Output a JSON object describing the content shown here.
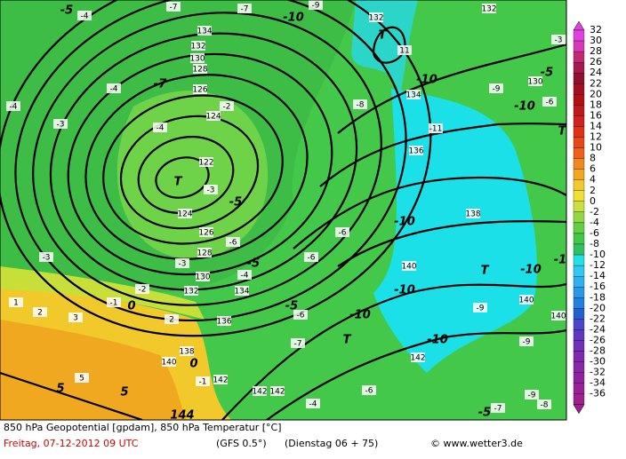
{
  "colorbar_labels": [
    "32",
    "30",
    "28",
    "26",
    "24",
    "22",
    "20",
    "18",
    "16",
    "14",
    "12",
    "10",
    "8",
    "6",
    "4",
    "2",
    "0",
    "-2",
    "-4",
    "-6",
    "-8",
    "-10",
    "-12",
    "-14",
    "-16",
    "-18",
    "-20",
    "-22",
    "-24",
    "-26",
    "-28",
    "-30",
    "-32",
    "-34",
    "-36"
  ],
  "footer": {
    "line1": "850 hPa Geopotential [gpdam], 850 hPa Temperatur [°C]",
    "date": "Freitag, 07-12-2012  09 UTC",
    "model": "(GFS 0.5°)",
    "run": "(Dienstag 06 + 75)",
    "source": "© www.wetter3.de"
  },
  "map_labels": [
    "-5",
    "-4",
    "-7",
    "-7",
    "-10",
    "-9",
    "132",
    "T",
    "132",
    "-3",
    "134",
    "132",
    "130",
    "128",
    "11",
    "-10",
    "130",
    "-5",
    "-4",
    "-7",
    "126",
    "-2",
    "124",
    "134",
    "-8",
    "-10",
    "-4",
    "-3",
    "-4",
    "-11",
    "122",
    "T",
    "-3",
    "-5",
    "136",
    "124",
    "-10",
    "138",
    "126",
    "-6",
    "-6",
    "-3",
    "128",
    "-6",
    "-5",
    "-3",
    "140",
    "T",
    "-10",
    "130",
    "-4",
    "132",
    "134",
    "-2",
    "-10",
    "-1",
    "0",
    "1",
    "2",
    "3",
    "2",
    "-5",
    "-6",
    "-10",
    "136",
    "T",
    "-7",
    "-10",
    "-9",
    "138",
    "140",
    "0",
    "142",
    "-1",
    "142",
    "142",
    "142",
    "-4",
    "-6",
    "-9",
    "5",
    "5",
    "5",
    "144",
    "-5",
    "-7",
    "-8",
    "140",
    "140",
    "-9",
    "-1",
    "T",
    "-6",
    "-9"
  ]
}
